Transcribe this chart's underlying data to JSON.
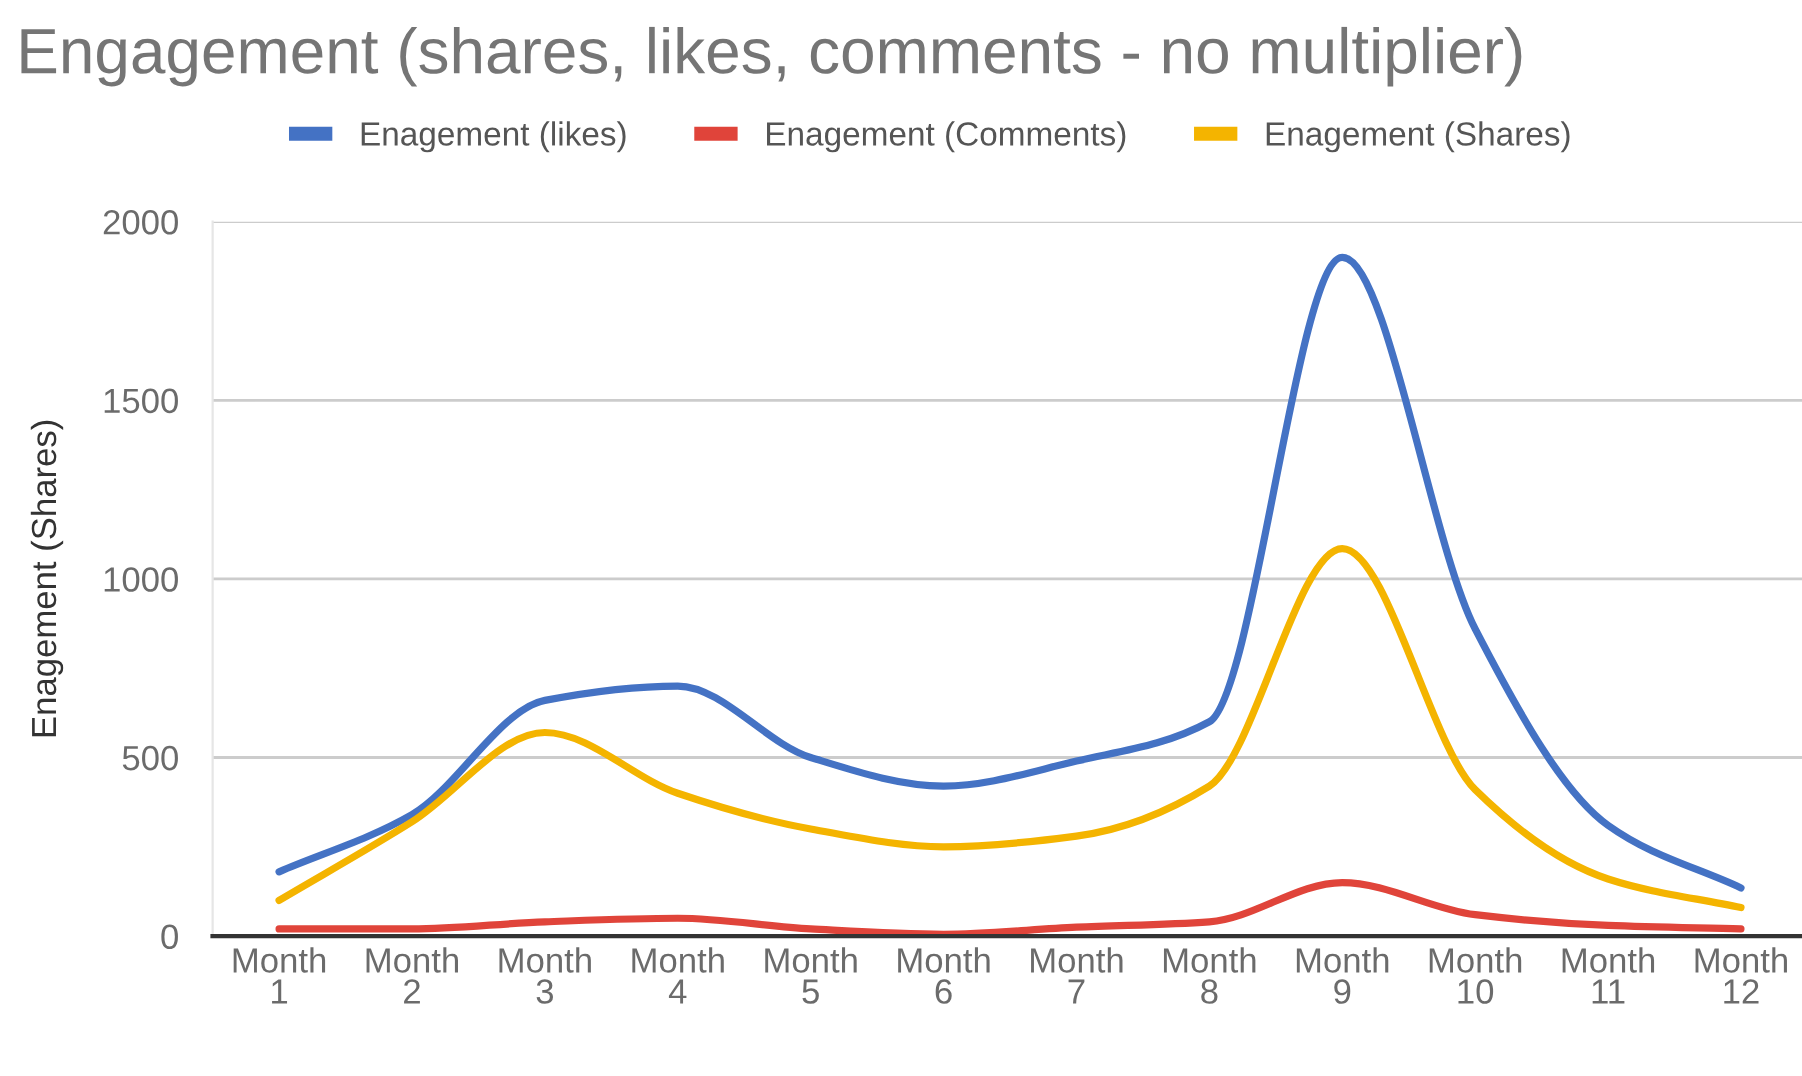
{
  "chart_data": {
    "type": "line",
    "title": "Engagement (shares, likes, comments - no multiplier)",
    "ylabel": "Enagement (Shares)",
    "categories": [
      "Month 1",
      "Month 2",
      "Month 3",
      "Month 4",
      "Month 5",
      "Month 6",
      "Month 7",
      "Month 8",
      "Month 9",
      "Month 10",
      "Month 11",
      "Month 12"
    ],
    "series": [
      {
        "name": "Enagement (likes)",
        "color": "#4472c4",
        "values": [
          180,
          340,
          660,
          700,
          500,
          420,
          490,
          600,
          1900,
          860,
          310,
          135
        ]
      },
      {
        "name": "Enagement (Comments)",
        "color": "#e0443a",
        "values": [
          20,
          20,
          40,
          50,
          20,
          5,
          25,
          40,
          150,
          60,
          30,
          20
        ]
      },
      {
        "name": "Enagement (Shares)",
        "color": "#f4b400",
        "values": [
          100,
          320,
          570,
          400,
          300,
          250,
          280,
          420,
          1085,
          410,
          160,
          80
        ]
      }
    ],
    "ylim": [
      0,
      2000
    ],
    "yticks": [
      0,
      500,
      1000,
      1500,
      2000
    ],
    "grid": "y",
    "legend": "top",
    "marker": "none",
    "line_style": "solid"
  }
}
